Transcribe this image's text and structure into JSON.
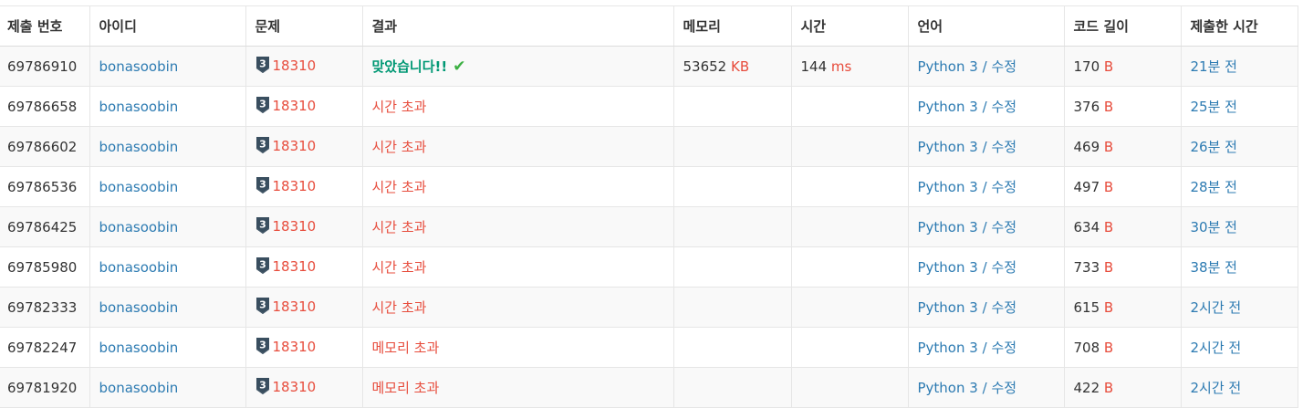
{
  "table": {
    "headers": [
      "제출 번호",
      "아이디",
      "문제",
      "결과",
      "메모리",
      "시간",
      "언어",
      "코드 길이",
      "제출한 시간"
    ],
    "edit_label": "수정",
    "rows": [
      {
        "id": "69786910",
        "user": "bonasoobin",
        "tier": "3",
        "problem": "18310",
        "result": "맞았습니다!!",
        "accepted": true,
        "memory": "53652",
        "memory_unit": "KB",
        "time": "144",
        "time_unit": "ms",
        "lang": "Python 3",
        "code_len": "170",
        "code_unit": "B",
        "submitted": "21분 전"
      },
      {
        "id": "69786658",
        "user": "bonasoobin",
        "tier": "3",
        "problem": "18310",
        "result": "시간 초과",
        "accepted": false,
        "memory": "",
        "memory_unit": "",
        "time": "",
        "time_unit": "",
        "lang": "Python 3",
        "code_len": "376",
        "code_unit": "B",
        "submitted": "25분 전"
      },
      {
        "id": "69786602",
        "user": "bonasoobin",
        "tier": "3",
        "problem": "18310",
        "result": "시간 초과",
        "accepted": false,
        "memory": "",
        "memory_unit": "",
        "time": "",
        "time_unit": "",
        "lang": "Python 3",
        "code_len": "469",
        "code_unit": "B",
        "submitted": "26분 전"
      },
      {
        "id": "69786536",
        "user": "bonasoobin",
        "tier": "3",
        "problem": "18310",
        "result": "시간 초과",
        "accepted": false,
        "memory": "",
        "memory_unit": "",
        "time": "",
        "time_unit": "",
        "lang": "Python 3",
        "code_len": "497",
        "code_unit": "B",
        "submitted": "28분 전"
      },
      {
        "id": "69786425",
        "user": "bonasoobin",
        "tier": "3",
        "problem": "18310",
        "result": "시간 초과",
        "accepted": false,
        "memory": "",
        "memory_unit": "",
        "time": "",
        "time_unit": "",
        "lang": "Python 3",
        "code_len": "634",
        "code_unit": "B",
        "submitted": "30분 전"
      },
      {
        "id": "69785980",
        "user": "bonasoobin",
        "tier": "3",
        "problem": "18310",
        "result": "시간 초과",
        "accepted": false,
        "memory": "",
        "memory_unit": "",
        "time": "",
        "time_unit": "",
        "lang": "Python 3",
        "code_len": "733",
        "code_unit": "B",
        "submitted": "38분 전"
      },
      {
        "id": "69782333",
        "user": "bonasoobin",
        "tier": "3",
        "problem": "18310",
        "result": "시간 초과",
        "accepted": false,
        "memory": "",
        "memory_unit": "",
        "time": "",
        "time_unit": "",
        "lang": "Python 3",
        "code_len": "615",
        "code_unit": "B",
        "submitted": "2시간 전"
      },
      {
        "id": "69782247",
        "user": "bonasoobin",
        "tier": "3",
        "problem": "18310",
        "result": "메모리 초과",
        "accepted": false,
        "memory": "",
        "memory_unit": "",
        "time": "",
        "time_unit": "",
        "lang": "Python 3",
        "code_len": "708",
        "code_unit": "B",
        "submitted": "2시간 전"
      },
      {
        "id": "69781920",
        "user": "bonasoobin",
        "tier": "3",
        "problem": "18310",
        "result": "메모리 초과",
        "accepted": false,
        "memory": "",
        "memory_unit": "",
        "time": "",
        "time_unit": "",
        "lang": "Python 3",
        "code_len": "422",
        "code_unit": "B",
        "submitted": "2시간 전"
      }
    ]
  },
  "colors": {
    "link": "#2d7bb2",
    "accepted": "#009874",
    "error": "#e74c3c",
    "unit": "#e74c3c",
    "tier_badge": "#394e5f"
  },
  "icons": {
    "tier": "silver-tier-badge-icon",
    "accepted_check": "check-icon"
  }
}
